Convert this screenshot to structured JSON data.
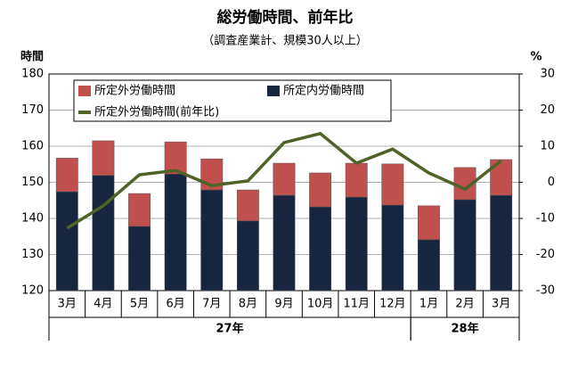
{
  "chart_data": {
    "type": "bar-line",
    "title": "総労働時間、前年比",
    "subtitle": "（調査産業計、規模30人以上）",
    "y_label": "時間",
    "y2_label": "%",
    "categories": [
      "3月",
      "4月",
      "5月",
      "6月",
      "7月",
      "8月",
      "9月",
      "10月",
      "11月",
      "12月",
      "1月",
      "2月",
      "3月"
    ],
    "groups": [
      {
        "label": "27年",
        "span": 10
      },
      {
        "label": "28年",
        "span": 3
      }
    ],
    "series": [
      {
        "name": "所定外労働時間",
        "type": "bar",
        "color": "#c0504d",
        "values": [
          9.3,
          9.6,
          9.1,
          8.9,
          8.6,
          8.6,
          8.9,
          9.4,
          9.4,
          11.4,
          9.4,
          8.9,
          9.9
        ]
      },
      {
        "name": "所定内労働時間",
        "type": "bar",
        "color": "#17253f",
        "values": [
          147.4,
          151.9,
          137.8,
          152.3,
          147.9,
          139.3,
          146.4,
          143.2,
          145.9,
          143.7,
          134.1,
          145.2,
          146.4
        ]
      },
      {
        "name": "所定外労働時間(前年比)",
        "type": "line",
        "axis": "y2",
        "color": "#4f6228",
        "values": [
          -12.7,
          -6.5,
          2.1,
          3.3,
          -0.9,
          0.4,
          11.0,
          13.5,
          5.3,
          9.2,
          2.6,
          -1.9,
          6.0
        ]
      }
    ],
    "ylim": [
      120,
      180
    ],
    "yticks": [
      120,
      130,
      140,
      150,
      160,
      170,
      180
    ],
    "y2lim": [
      -30,
      30
    ],
    "y2ticks": [
      -30,
      -20,
      -10,
      0,
      10,
      20,
      30
    ],
    "grid": true
  }
}
